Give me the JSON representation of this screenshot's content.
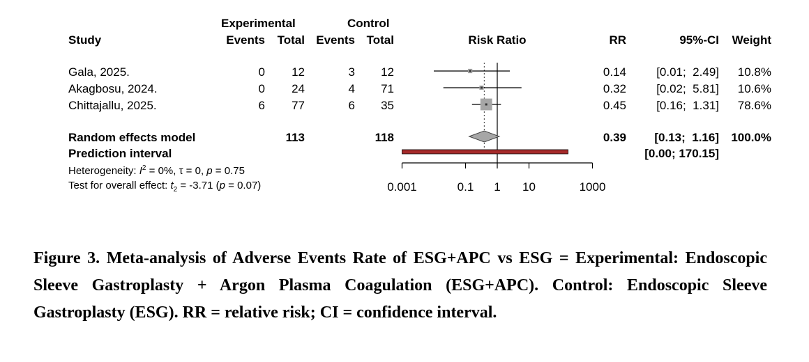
{
  "headers": {
    "study": "Study",
    "experimental_group": "Experimental",
    "control_group": "Control",
    "events": "Events",
    "total": "Total",
    "risk_ratio": "Risk Ratio",
    "rr": "RR",
    "ci": "95%-CI",
    "weight": "Weight"
  },
  "chart_data": {
    "type": "forest",
    "xlabel": "Risk Ratio",
    "x_scale": "log",
    "xlim": [
      0.001,
      1000
    ],
    "x_ticks": [
      0.001,
      0.1,
      1,
      10,
      1000
    ],
    "x_tick_labels": [
      "0.001",
      "0.1",
      "1",
      "10",
      "1000"
    ],
    "null_line": 1,
    "studies": [
      {
        "study": "Gala, 2025.",
        "exp_events": "0",
        "exp_total": "12",
        "ctrl_events": "3",
        "ctrl_total": "12",
        "rr": 0.14,
        "ci_low": 0.01,
        "ci_high": 2.49,
        "rr_text": "0.14",
        "ci_text": "[0.01;  2.49]",
        "weight_text": "10.8%",
        "weight": 10.8
      },
      {
        "study": "Akagbosu, 2024.",
        "exp_events": "0",
        "exp_total": "24",
        "ctrl_events": "4",
        "ctrl_total": "71",
        "rr": 0.32,
        "ci_low": 0.02,
        "ci_high": 5.81,
        "rr_text": "0.32",
        "ci_text": "[0.02;  5.81]",
        "weight_text": "10.6%",
        "weight": 10.6
      },
      {
        "study": "Chittajallu, 2025.",
        "exp_events": "6",
        "exp_total": "77",
        "ctrl_events": "6",
        "ctrl_total": "35",
        "rr": 0.45,
        "ci_low": 0.16,
        "ci_high": 1.31,
        "rr_text": "0.45",
        "ci_text": "[0.16;  1.31]",
        "weight_text": "78.6%",
        "weight": 78.6
      }
    ],
    "random_effects": {
      "label": "Random effects model",
      "exp_total": "113",
      "ctrl_total": "118",
      "rr": 0.39,
      "ci_low": 0.13,
      "ci_high": 1.16,
      "rr_text": "0.39",
      "ci_text": "[0.13;  1.16]",
      "weight_text": "100.0%",
      "color": "#a6a6a6"
    },
    "prediction_interval": {
      "label": "Prediction interval",
      "low": 0.0,
      "high": 170.15,
      "ci_text": "[0.00; 170.15]",
      "color": "#a52a2a"
    },
    "heterogeneity": {
      "prefix": "Heterogeneity: ",
      "i2_symbol": "I",
      "i2_power": "2",
      "rest": " = 0%, τ = 0, ",
      "p_symbol": "p",
      "p_rest": " = 0.75"
    },
    "overall_effect": {
      "prefix": "Test for overall effect: ",
      "t_symbol": "t",
      "t_sub": "2",
      "t_rest": " = -3.71 (",
      "p_symbol": "p",
      "p_rest": " = 0.07)"
    },
    "square_color": "#a6a6a6"
  },
  "caption": "Figure 3. Meta-analysis of Adverse Events Rate of ESG+APC vs ESG = Experimental: Endoscopic Sleeve Gastroplasty + Argon Plasma Coagulation (ESG+APC). Control: Endoscopic Sleeve Gastroplasty (ESG). RR = relative risk; CI = confidence interval."
}
